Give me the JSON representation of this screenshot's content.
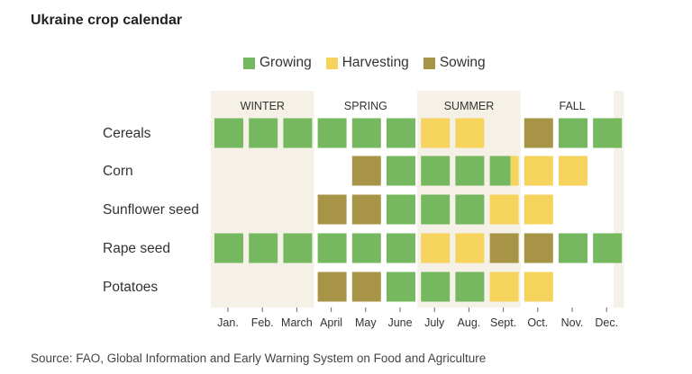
{
  "title": "Ukraine crop calendar",
  "source": "Source: FAO, Global Information and Early Warning System on Food and Agriculture",
  "legend": [
    {
      "key": "growing",
      "label": "Growing",
      "color": "#76b85f"
    },
    {
      "key": "harvesting",
      "label": "Harvesting",
      "color": "#f5d35c"
    },
    {
      "key": "sowing",
      "label": "Sowing",
      "color": "#a89446"
    }
  ],
  "chart_data": {
    "type": "heatmap",
    "title": "Ukraine crop calendar",
    "x": [
      "Jan.",
      "Feb.",
      "March",
      "April",
      "May",
      "June",
      "July",
      "Aug.",
      "Sept.",
      "Oct.",
      "Nov.",
      "Dec."
    ],
    "seasons": [
      {
        "label": "WINTER",
        "start_month": 1,
        "end_month": 3
      },
      {
        "label": "SPRING",
        "start_month": 4,
        "end_month": 6
      },
      {
        "label": "SUMMER",
        "start_month": 7,
        "end_month": 9
      },
      {
        "label": "FALL",
        "start_month": 10,
        "end_month": 12
      }
    ],
    "rows": [
      {
        "crop": "Cereals",
        "months": [
          "growing",
          "growing",
          "growing",
          "growing",
          "growing",
          "growing",
          "harvesting",
          "harvesting",
          null,
          "sowing",
          "growing",
          "growing"
        ]
      },
      {
        "crop": "Corn",
        "months": [
          null,
          null,
          null,
          null,
          "sowing",
          "growing",
          "growing",
          "growing",
          "growing/harvesting",
          "harvesting",
          "harvesting",
          null
        ]
      },
      {
        "crop": "Sunflower seed",
        "months": [
          null,
          null,
          null,
          "sowing",
          "sowing",
          "growing",
          "growing",
          "growing",
          "harvesting",
          "harvesting",
          null,
          null
        ]
      },
      {
        "crop": "Rape seed",
        "months": [
          "growing",
          "growing",
          "growing",
          "growing",
          "growing",
          "growing",
          "harvesting",
          "harvesting",
          "sowing",
          "sowing",
          "growing",
          "growing"
        ]
      },
      {
        "crop": "Potatoes",
        "months": [
          null,
          null,
          null,
          "sowing",
          "sowing",
          "growing",
          "growing",
          "growing",
          "harvesting",
          "harvesting",
          null,
          null
        ]
      }
    ],
    "colors": {
      "growing": "#76b85f",
      "harvesting": "#f5d35c",
      "sowing": "#a89446",
      "season_band": "#f5f1e6"
    },
    "legend_position": "top-center"
  }
}
